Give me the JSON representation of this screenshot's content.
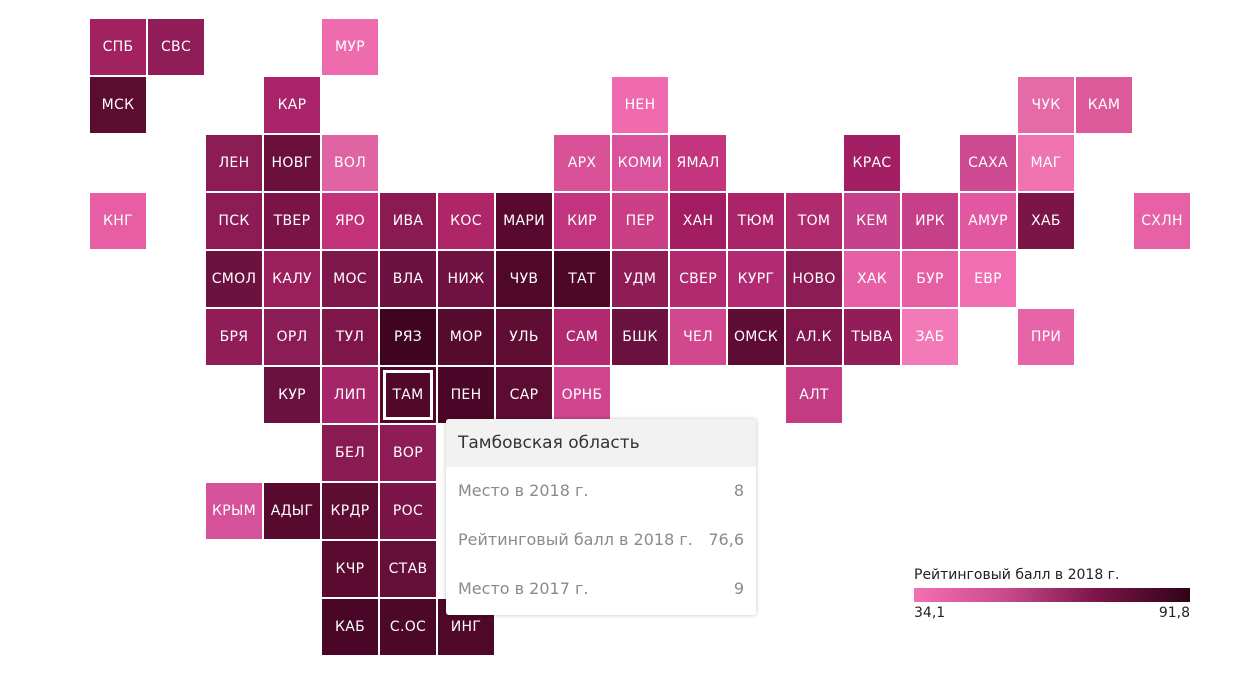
{
  "regions": [
    {
      "label": "СПБ",
      "fill": "#a12161"
    },
    {
      "label": "СВС",
      "fill": "#901d57"
    },
    {
      "label": "МУР",
      "fill": "#ee6cae"
    },
    {
      "label": "МСК",
      "fill": "#5b0d2f"
    },
    {
      "label": "КАР",
      "fill": "#a9246a"
    },
    {
      "label": "НЕН",
      "fill": "#f06ab0"
    },
    {
      "label": "ЧУК",
      "fill": "#e76aa8"
    },
    {
      "label": "КАМ",
      "fill": "#dc5a9a"
    },
    {
      "label": "ЛЕН",
      "fill": "#8c1c54"
    },
    {
      "label": "НОВГ",
      "fill": "#690f3a"
    },
    {
      "label": "ВОЛ",
      "fill": "#e064a4"
    },
    {
      "label": "АРХ",
      "fill": "#d95196"
    },
    {
      "label": "КОМИ",
      "fill": "#d9529b"
    },
    {
      "label": "ЯМАЛ",
      "fill": "#c4357e"
    },
    {
      "label": "КРАС",
      "fill": "#a11f62"
    },
    {
      "label": "САХА",
      "fill": "#cd4990"
    },
    {
      "label": "МАГ",
      "fill": "#ef72b1"
    },
    {
      "label": "КНГ",
      "fill": "#e85ea4"
    },
    {
      "label": "ПСК",
      "fill": "#8d1c56"
    },
    {
      "label": "ТВЕР",
      "fill": "#7a1446"
    },
    {
      "label": "ЯРО",
      "fill": "#c23279"
    },
    {
      "label": "ИВА",
      "fill": "#8a1a52"
    },
    {
      "label": "КОС",
      "fill": "#ae2668"
    },
    {
      "label": "МАРИ",
      "fill": "#58092d"
    },
    {
      "label": "КИР",
      "fill": "#c2347e"
    },
    {
      "label": "ПЕР",
      "fill": "#cb3f87"
    },
    {
      "label": "ХАН",
      "fill": "#a21d62"
    },
    {
      "label": "ТЮМ",
      "fill": "#a92468"
    },
    {
      "label": "ТОМ",
      "fill": "#b02a6e"
    },
    {
      "label": "КЕМ",
      "fill": "#c6418b"
    },
    {
      "label": "ИРК",
      "fill": "#c54089"
    },
    {
      "label": "АМУР",
      "fill": "#e258a0"
    },
    {
      "label": "ХАБ",
      "fill": "#7c1547"
    },
    {
      "label": "СХЛН",
      "fill": "#e761a6"
    },
    {
      "label": "СМОЛ",
      "fill": "#6d1240"
    },
    {
      "label": "КАЛУ",
      "fill": "#9c1f5d"
    },
    {
      "label": "МОС",
      "fill": "#7d1649"
    },
    {
      "label": "ВЛА",
      "fill": "#6c1140"
    },
    {
      "label": "НИЖ",
      "fill": "#6f1241"
    },
    {
      "label": "ЧУВ",
      "fill": "#4f0828"
    },
    {
      "label": "ТАТ",
      "fill": "#4e0827"
    },
    {
      "label": "УДМ",
      "fill": "#8e1c55"
    },
    {
      "label": "СВЕР",
      "fill": "#b12a70"
    },
    {
      "label": "КУРГ",
      "fill": "#b12b72"
    },
    {
      "label": "НОВО",
      "fill": "#8c1c55"
    },
    {
      "label": "ХАК",
      "fill": "#e560a6"
    },
    {
      "label": "БУР",
      "fill": "#e65fa5"
    },
    {
      "label": "ЕВР",
      "fill": "#f26eb3"
    },
    {
      "label": "БРЯ",
      "fill": "#901d57"
    },
    {
      "label": "ОРЛ",
      "fill": "#8c1c55"
    },
    {
      "label": "ТУЛ",
      "fill": "#7e1649"
    },
    {
      "label": "РЯЗ",
      "fill": "#3f0420"
    },
    {
      "label": "МОР",
      "fill": "#560a2d"
    },
    {
      "label": "УЛЬ",
      "fill": "#5f0d33"
    },
    {
      "label": "САМ",
      "fill": "#b1296e"
    },
    {
      "label": "БШК",
      "fill": "#6a1140"
    },
    {
      "label": "ЧЕЛ",
      "fill": "#d2488f"
    },
    {
      "label": "ОМСК",
      "fill": "#5e0c33"
    },
    {
      "label": "АЛ.К",
      "fill": "#7e1649"
    },
    {
      "label": "ТЫВА",
      "fill": "#931d59"
    },
    {
      "label": "ЗАБ",
      "fill": "#f27ab9"
    },
    {
      "label": "ПРИ",
      "fill": "#e864a8"
    },
    {
      "label": "КУР",
      "fill": "#6b1140"
    },
    {
      "label": "ЛИП",
      "fill": "#a62468"
    },
    {
      "label": "ТАМ",
      "fill": "#520929"
    },
    {
      "label": "ПЕН",
      "fill": "#4b0727"
    },
    {
      "label": "САР",
      "fill": "#5c0c31"
    },
    {
      "label": "ОРНБ",
      "fill": "#d04590"
    },
    {
      "label": "АЛТ",
      "fill": "#c23b83"
    },
    {
      "label": "БЕЛ",
      "fill": "#8a1a52"
    },
    {
      "label": "ВОР",
      "fill": "#8e1c56"
    },
    {
      "label": "КРЫМ",
      "fill": "#d5529a"
    },
    {
      "label": "АДЫГ",
      "fill": "#570a2d"
    },
    {
      "label": "КРДР",
      "fill": "#5e0c32"
    },
    {
      "label": "РОС",
      "fill": "#7c1547"
    },
    {
      "label": "КЧР",
      "fill": "#5a0b2f"
    },
    {
      "label": "СТАВ",
      "fill": "#650f38"
    },
    {
      "label": "КАБ",
      "fill": "#4a0626"
    },
    {
      "label": "С.ОС",
      "fill": "#4d0727"
    },
    {
      "label": "ИНГ",
      "fill": "#4f0828"
    }
  ],
  "selected": "ТАМ",
  "tooltip": {
    "title": "Тамбовская область",
    "rows": [
      {
        "label": "Место в 2018 г.",
        "value": "8"
      },
      {
        "label": "Рейтинговый балл в 2018 г.",
        "value": "76,6"
      },
      {
        "label": "Место в 2017 г.",
        "value": "9"
      }
    ]
  },
  "legend": {
    "title": "Рейтинговый балл в 2018 г.",
    "min": "34,1",
    "max": "91,8"
  }
}
